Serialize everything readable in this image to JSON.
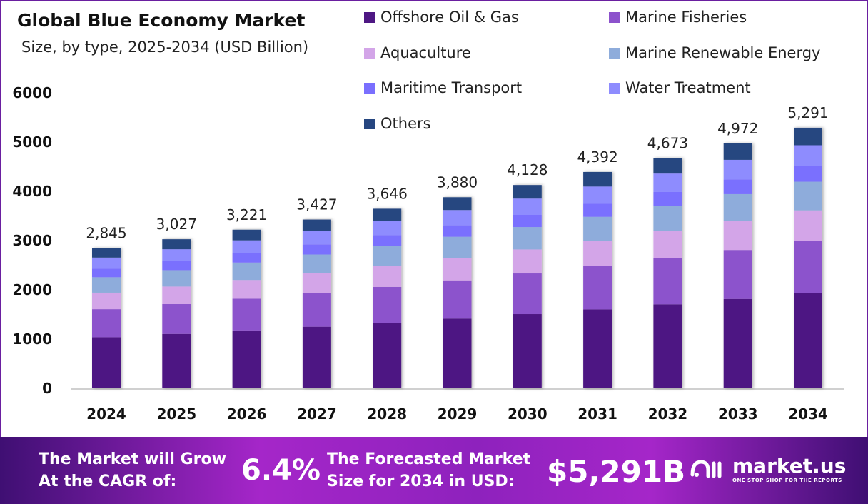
{
  "chart_data": {
    "type": "bar",
    "stacked": true,
    "title": "Global Blue Economy Market",
    "subtitle": "Size, by type, 2025-2034 (USD Billion)",
    "categories": [
      "2024",
      "2025",
      "2026",
      "2027",
      "2028",
      "2029",
      "2030",
      "2031",
      "2032",
      "2033",
      "2034"
    ],
    "totals": [
      2845,
      3027,
      3221,
      3427,
      3646,
      3880,
      4128,
      4392,
      4673,
      4972,
      5291
    ],
    "total_labels": [
      "2,845",
      "3,027",
      "3,221",
      "3,427",
      "3,646",
      "3,880",
      "4,128",
      "4,392",
      "4,673",
      "4,972",
      "5,291"
    ],
    "yticks": [
      "0",
      "1000",
      "2000",
      "3000",
      "4000",
      "5000",
      "6000"
    ],
    "ylim": [
      0,
      6000
    ],
    "grid": false,
    "legend_position": "top-right",
    "series": [
      {
        "name": "Offshore Oil & Gas",
        "color": "#4e1783",
        "values": [
          1038,
          1105,
          1176,
          1251,
          1331,
          1416,
          1507,
          1603,
          1706,
          1815,
          1931
        ]
      },
      {
        "name": "Marine Fisheries",
        "color": "#8c52cc",
        "values": [
          569,
          605,
          644,
          685,
          729,
          776,
          826,
          878,
          935,
          994,
          1058
        ]
      },
      {
        "name": "Aquaculture",
        "color": "#d3a5e8",
        "values": [
          336,
          357,
          380,
          404,
          430,
          458,
          487,
          518,
          551,
          587,
          624
        ]
      },
      {
        "name": "Marine Renewable Energy",
        "color": "#8eacdb",
        "values": [
          313,
          333,
          354,
          377,
          401,
          427,
          454,
          483,
          514,
          547,
          582
        ]
      },
      {
        "name": "Maritime Transport",
        "color": "#7a6ffe",
        "values": [
          171,
          182,
          193,
          206,
          219,
          233,
          248,
          264,
          280,
          298,
          317
        ]
      },
      {
        "name": "Water Treatment",
        "color": "#8e8cfe",
        "values": [
          228,
          242,
          258,
          274,
          292,
          310,
          330,
          351,
          374,
          398,
          423
        ]
      },
      {
        "name": "Others",
        "color": "#264680",
        "values": [
          190,
          203,
          216,
          230,
          244,
          260,
          276,
          295,
          313,
          333,
          356
        ]
      }
    ]
  },
  "banner": {
    "cagr_text_1": "The Market will Grow",
    "cagr_text_2": "At the CAGR of:",
    "cagr_value": "6.4%",
    "forecast_text_1": "The Forecasted Market",
    "forecast_text_2": "Size for 2034 in USD:",
    "forecast_value": "$5,291B",
    "logo_name": "market.us",
    "logo_tagline": "ONE STOP SHOP FOR THE REPORTS",
    "logo_icon": "market-us-logo-icon"
  }
}
